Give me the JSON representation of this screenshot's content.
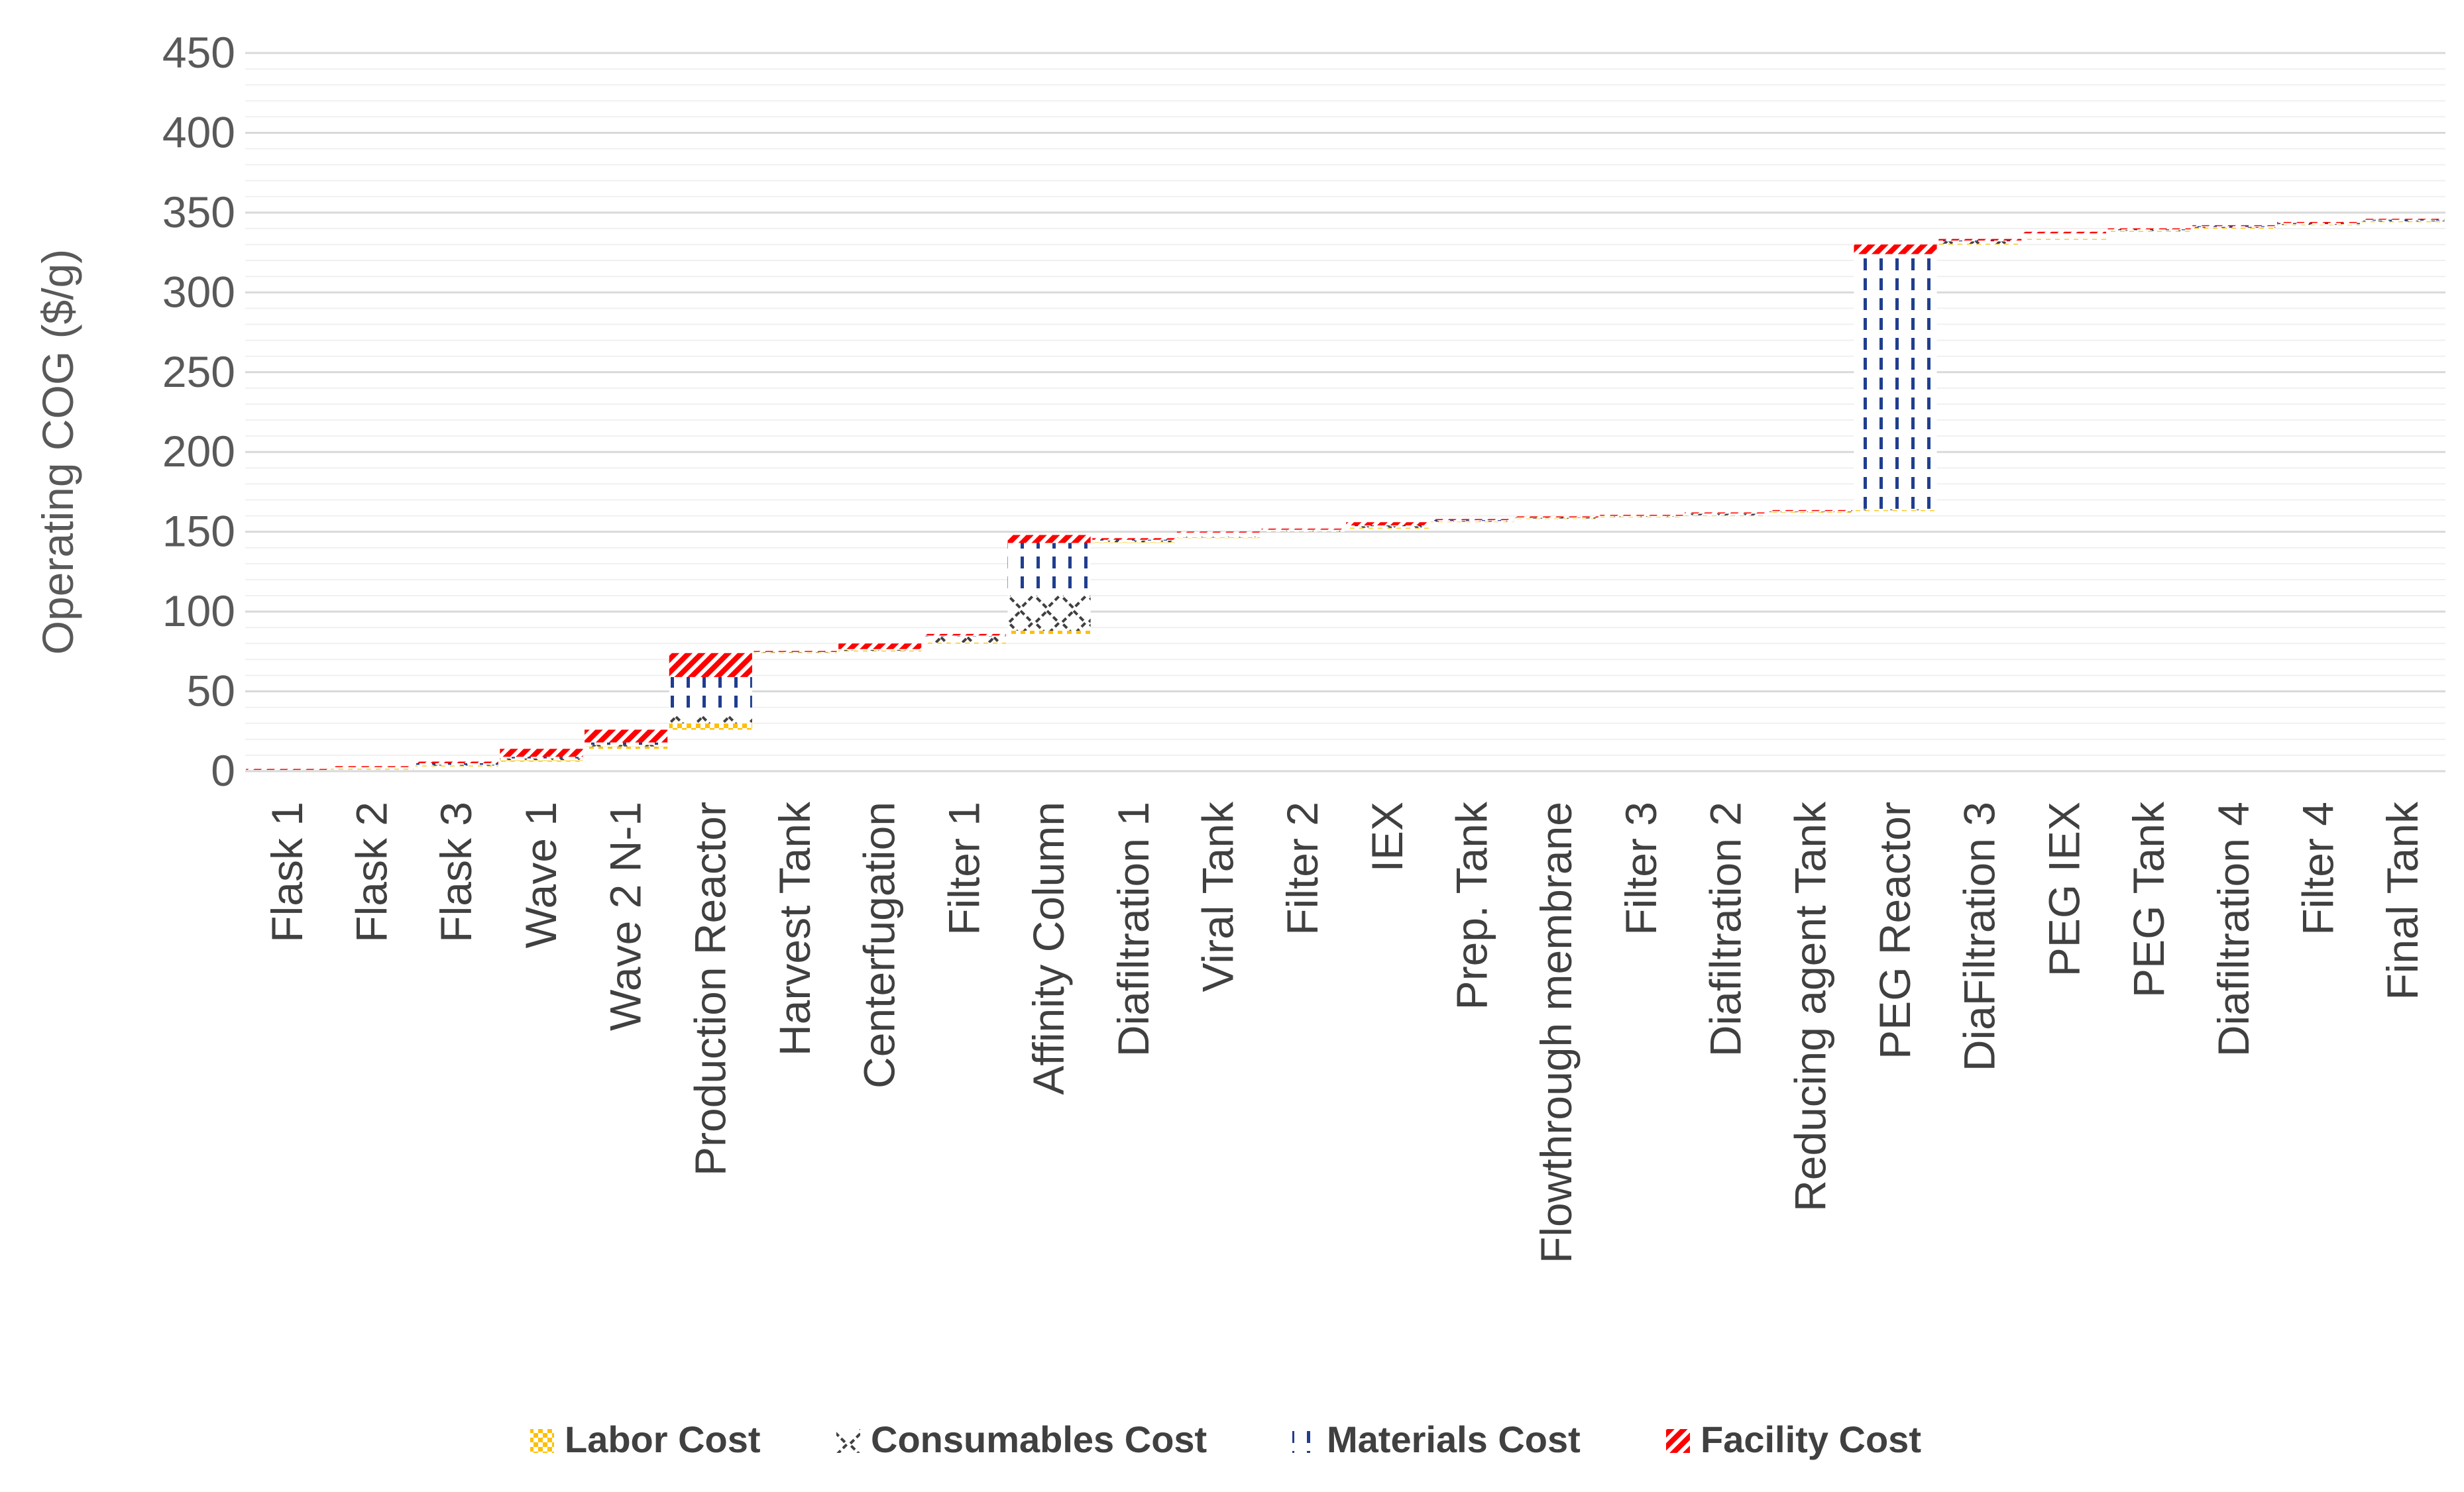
{
  "chart_data": {
    "type": "bar",
    "subtype": "stacked-waterfall",
    "title": "",
    "xlabel": "",
    "ylabel": "Operating COG ($/g)",
    "ylim": [
      0,
      450
    ],
    "y_ticks": [
      "0",
      "50",
      "100",
      "150",
      "200",
      "250",
      "300",
      "350",
      "400",
      "450"
    ],
    "grid": true,
    "legend_position": "bottom",
    "categories": [
      "Flask 1",
      "Flask 2",
      "Flask 3",
      "Wave 1",
      "Wave 2 N-1",
      "Production Reactor",
      "Harvest Tank",
      "Centerfugation",
      "Filter 1",
      "Affinity Column",
      "Diafiltration 1",
      "Viral Tank",
      "Filter 2",
      "IEX",
      "Prep. Tank",
      "Flowthrough membrane",
      "Filter 3",
      "Diafiltration 2",
      "Reducing agent Tank",
      "PEG Reactor",
      "DiaFiltration 3",
      "PEG IEX",
      "PEG Tank",
      "Diafiltration 4",
      "Filter 4",
      "Final Tank"
    ],
    "base": [
      0,
      1,
      3,
      6,
      14,
      26,
      74,
      75,
      80,
      86,
      143,
      146,
      150,
      152,
      156,
      158,
      159,
      160,
      162,
      163,
      330,
      333,
      338,
      340,
      342,
      344
    ],
    "series": [
      {
        "name": "Labor Cost",
        "color": "#FFC000",
        "values": [
          0.3,
          0.5,
          0.5,
          1,
          1.5,
          4,
          0.3,
          0.5,
          0.5,
          2,
          0.5,
          0.5,
          0.3,
          0.5,
          0.3,
          0.3,
          0.3,
          0.3,
          0.3,
          0.5,
          0.5,
          0.5,
          0.5,
          0.5,
          0.3,
          0.5
        ]
      },
      {
        "name": "Consumables Cost",
        "color": "#404040",
        "values": [
          0.3,
          0.5,
          0.5,
          1,
          1,
          5,
          0.2,
          0.5,
          4,
          22,
          1,
          0.5,
          0.5,
          1,
          0.5,
          0.5,
          0.5,
          1,
          0.3,
          0.5,
          1.5,
          1,
          0.5,
          0.5,
          0.5,
          0.5
        ]
      },
      {
        "name": "Materials Cost",
        "color": "#1F3E8F",
        "values": [
          0.2,
          0.5,
          1,
          1,
          1.5,
          24,
          0.2,
          0.5,
          0.5,
          33,
          0.5,
          2.5,
          0.5,
          0.5,
          0.5,
          0.2,
          0.2,
          0.2,
          0.4,
          160,
          0.5,
          2.5,
          0.5,
          0.5,
          0.7,
          0.5
        ]
      },
      {
        "name": "Facility Cost",
        "color": "#FF0000",
        "values": [
          0.2,
          0.5,
          1,
          5,
          8,
          15,
          0.3,
          3.5,
          1,
          5,
          1,
          0.5,
          0.7,
          2,
          0.7,
          0.3,
          0.2,
          0.5,
          0.3,
          6,
          1,
          1,
          0.5,
          0.5,
          0.5,
          0.5
        ]
      }
    ]
  }
}
